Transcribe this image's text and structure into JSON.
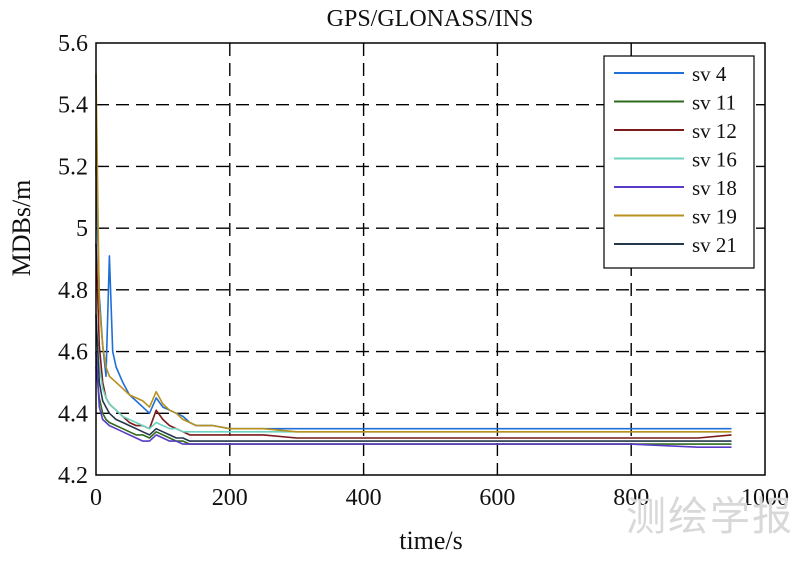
{
  "chart_data": {
    "type": "line",
    "title": "GPS/GLONASS/INS",
    "xlabel": "time/s",
    "ylabel": "MDBs/m",
    "xlim": [
      0,
      1000
    ],
    "ylim": [
      4.2,
      5.6
    ],
    "xticks": [
      0,
      200,
      400,
      600,
      800,
      1000
    ],
    "yticks": [
      4.2,
      4.4,
      4.6,
      4.8,
      5,
      5.2,
      5.4,
      5.6
    ],
    "xtick_labels": [
      "0",
      "200",
      "400",
      "600",
      "800",
      "1000"
    ],
    "ytick_labels": [
      "4.2",
      "4.4",
      "4.6",
      "4.8",
      "5",
      "5.2",
      "5.4",
      "5.6"
    ],
    "grid": true,
    "legend_position": "top-right",
    "series": [
      {
        "name": "sv 4",
        "color": "#1f6fd6",
        "x": [
          0,
          5,
          10,
          15,
          20,
          25,
          30,
          40,
          50,
          60,
          70,
          80,
          90,
          100,
          110,
          120,
          130,
          140,
          150,
          175,
          200,
          250,
          300,
          400,
          500,
          600,
          700,
          800,
          900,
          950
        ],
        "y": [
          5.2,
          4.78,
          4.62,
          4.52,
          4.91,
          4.6,
          4.55,
          4.5,
          4.46,
          4.44,
          4.42,
          4.4,
          4.45,
          4.42,
          4.41,
          4.4,
          4.39,
          4.37,
          4.36,
          4.36,
          4.35,
          4.35,
          4.35,
          4.35,
          4.35,
          4.35,
          4.35,
          4.35,
          4.35,
          4.35
        ]
      },
      {
        "name": "sv 11",
        "color": "#2f6b1e",
        "x": [
          0,
          5,
          10,
          15,
          20,
          30,
          40,
          50,
          60,
          70,
          80,
          90,
          100,
          110,
          120,
          130,
          140,
          150,
          175,
          200,
          250,
          300,
          400,
          500,
          600,
          700,
          800,
          900,
          950
        ],
        "y": [
          4.55,
          4.45,
          4.4,
          4.38,
          4.37,
          4.36,
          4.35,
          4.34,
          4.33,
          4.33,
          4.32,
          4.34,
          4.33,
          4.32,
          4.31,
          4.31,
          4.3,
          4.3,
          4.3,
          4.3,
          4.3,
          4.3,
          4.3,
          4.3,
          4.3,
          4.3,
          4.3,
          4.3,
          4.3
        ]
      },
      {
        "name": "sv 12",
        "color": "#7a1a1a",
        "x": [
          0,
          5,
          10,
          15,
          20,
          30,
          40,
          50,
          60,
          70,
          80,
          90,
          100,
          110,
          120,
          130,
          140,
          150,
          175,
          200,
          250,
          300,
          400,
          500,
          600,
          700,
          800,
          900,
          950
        ],
        "y": [
          4.95,
          4.62,
          4.5,
          4.45,
          4.43,
          4.41,
          4.39,
          4.37,
          4.36,
          4.36,
          4.35,
          4.41,
          4.38,
          4.36,
          4.35,
          4.34,
          4.33,
          4.33,
          4.33,
          4.33,
          4.33,
          4.32,
          4.32,
          4.32,
          4.32,
          4.32,
          4.32,
          4.32,
          4.33
        ]
      },
      {
        "name": "sv 16",
        "color": "#6fd3c2",
        "x": [
          0,
          5,
          10,
          15,
          20,
          30,
          40,
          50,
          60,
          70,
          80,
          90,
          100,
          110,
          120,
          130,
          140,
          150,
          175,
          200,
          250,
          300,
          400,
          500,
          600,
          700,
          800,
          900,
          950
        ],
        "y": [
          4.7,
          4.55,
          4.48,
          4.45,
          4.43,
          4.41,
          4.39,
          4.38,
          4.37,
          4.36,
          4.35,
          4.37,
          4.36,
          4.35,
          4.35,
          4.34,
          4.34,
          4.34,
          4.34,
          4.34,
          4.34,
          4.34,
          4.34,
          4.34,
          4.34,
          4.34,
          4.34,
          4.34,
          4.34
        ]
      },
      {
        "name": "sv 18",
        "color": "#5a3ac8",
        "x": [
          0,
          5,
          10,
          15,
          20,
          30,
          40,
          50,
          60,
          70,
          80,
          90,
          100,
          110,
          120,
          130,
          140,
          150,
          175,
          200,
          250,
          300,
          400,
          500,
          600,
          700,
          800,
          900,
          950
        ],
        "y": [
          4.6,
          4.42,
          4.38,
          4.37,
          4.36,
          4.35,
          4.34,
          4.33,
          4.32,
          4.31,
          4.31,
          4.33,
          4.32,
          4.31,
          4.31,
          4.3,
          4.3,
          4.3,
          4.3,
          4.3,
          4.3,
          4.3,
          4.3,
          4.3,
          4.3,
          4.3,
          4.3,
          4.29,
          4.29
        ]
      },
      {
        "name": "sv 19",
        "color": "#b8901e",
        "x": [
          0,
          5,
          10,
          15,
          20,
          30,
          40,
          50,
          60,
          70,
          80,
          90,
          100,
          110,
          120,
          130,
          140,
          150,
          175,
          200,
          250,
          300,
          400,
          500,
          600,
          700,
          800,
          900,
          950
        ],
        "y": [
          5.5,
          4.75,
          4.62,
          4.55,
          4.52,
          4.5,
          4.48,
          4.46,
          4.45,
          4.44,
          4.42,
          4.47,
          4.43,
          4.41,
          4.4,
          4.38,
          4.37,
          4.36,
          4.36,
          4.35,
          4.35,
          4.34,
          4.34,
          4.34,
          4.34,
          4.34,
          4.34,
          4.34,
          4.34
        ]
      },
      {
        "name": "sv 21",
        "color": "#23384a",
        "x": [
          0,
          5,
          10,
          15,
          20,
          30,
          40,
          50,
          60,
          70,
          80,
          90,
          100,
          110,
          120,
          130,
          140,
          150,
          175,
          200,
          250,
          300,
          400,
          500,
          600,
          700,
          800,
          900,
          950
        ],
        "y": [
          4.72,
          4.5,
          4.44,
          4.42,
          4.4,
          4.38,
          4.37,
          4.36,
          4.35,
          4.34,
          4.33,
          4.35,
          4.34,
          4.33,
          4.32,
          4.32,
          4.31,
          4.31,
          4.31,
          4.31,
          4.31,
          4.31,
          4.31,
          4.31,
          4.31,
          4.31,
          4.31,
          4.31,
          4.31
        ]
      }
    ]
  },
  "watermark": "测绘学报"
}
